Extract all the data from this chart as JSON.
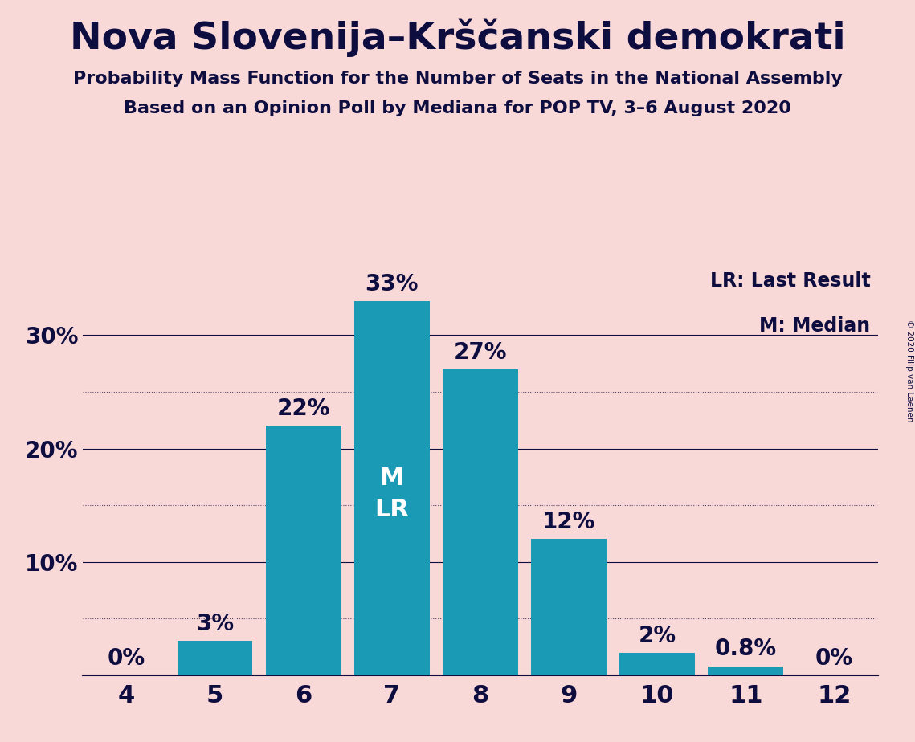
{
  "title": "Nova Slovenija–Krščanski demokrati",
  "subtitle1": "Probability Mass Function for the Number of Seats in the National Assembly",
  "subtitle2": "Based on an Opinion Poll by Mediana for POP TV, 3–6 August 2020",
  "copyright": "© 2020 Filip van Laenen",
  "categories": [
    4,
    5,
    6,
    7,
    8,
    9,
    10,
    11,
    12
  ],
  "values": [
    0.0,
    3.0,
    22.0,
    33.0,
    27.0,
    12.0,
    2.0,
    0.8,
    0.0
  ],
  "bar_labels": [
    "0%",
    "3%",
    "22%",
    "33%",
    "27%",
    "12%",
    "2%",
    "0.8%",
    "0%"
  ],
  "bar_color": "#1a9ab5",
  "background_color": "#f9d8d8",
  "text_color": "#0d0d40",
  "median_bar": 7,
  "legend_lr": "LR: Last Result",
  "legend_m": "M: Median",
  "ylabel_ticks": [
    "10%",
    "20%",
    "30%"
  ],
  "ytick_values": [
    10,
    20,
    30
  ],
  "dotted_grid_values": [
    5,
    15,
    25
  ],
  "solid_grid_values": [
    10,
    20,
    30
  ],
  "ylim": [
    0,
    36
  ],
  "title_fontsize": 34,
  "subtitle_fontsize": 16,
  "bar_label_fontsize": 20,
  "ytick_fontsize": 20,
  "xtick_fontsize": 22,
  "legend_fontsize": 17,
  "inside_label_fontsize": 22
}
